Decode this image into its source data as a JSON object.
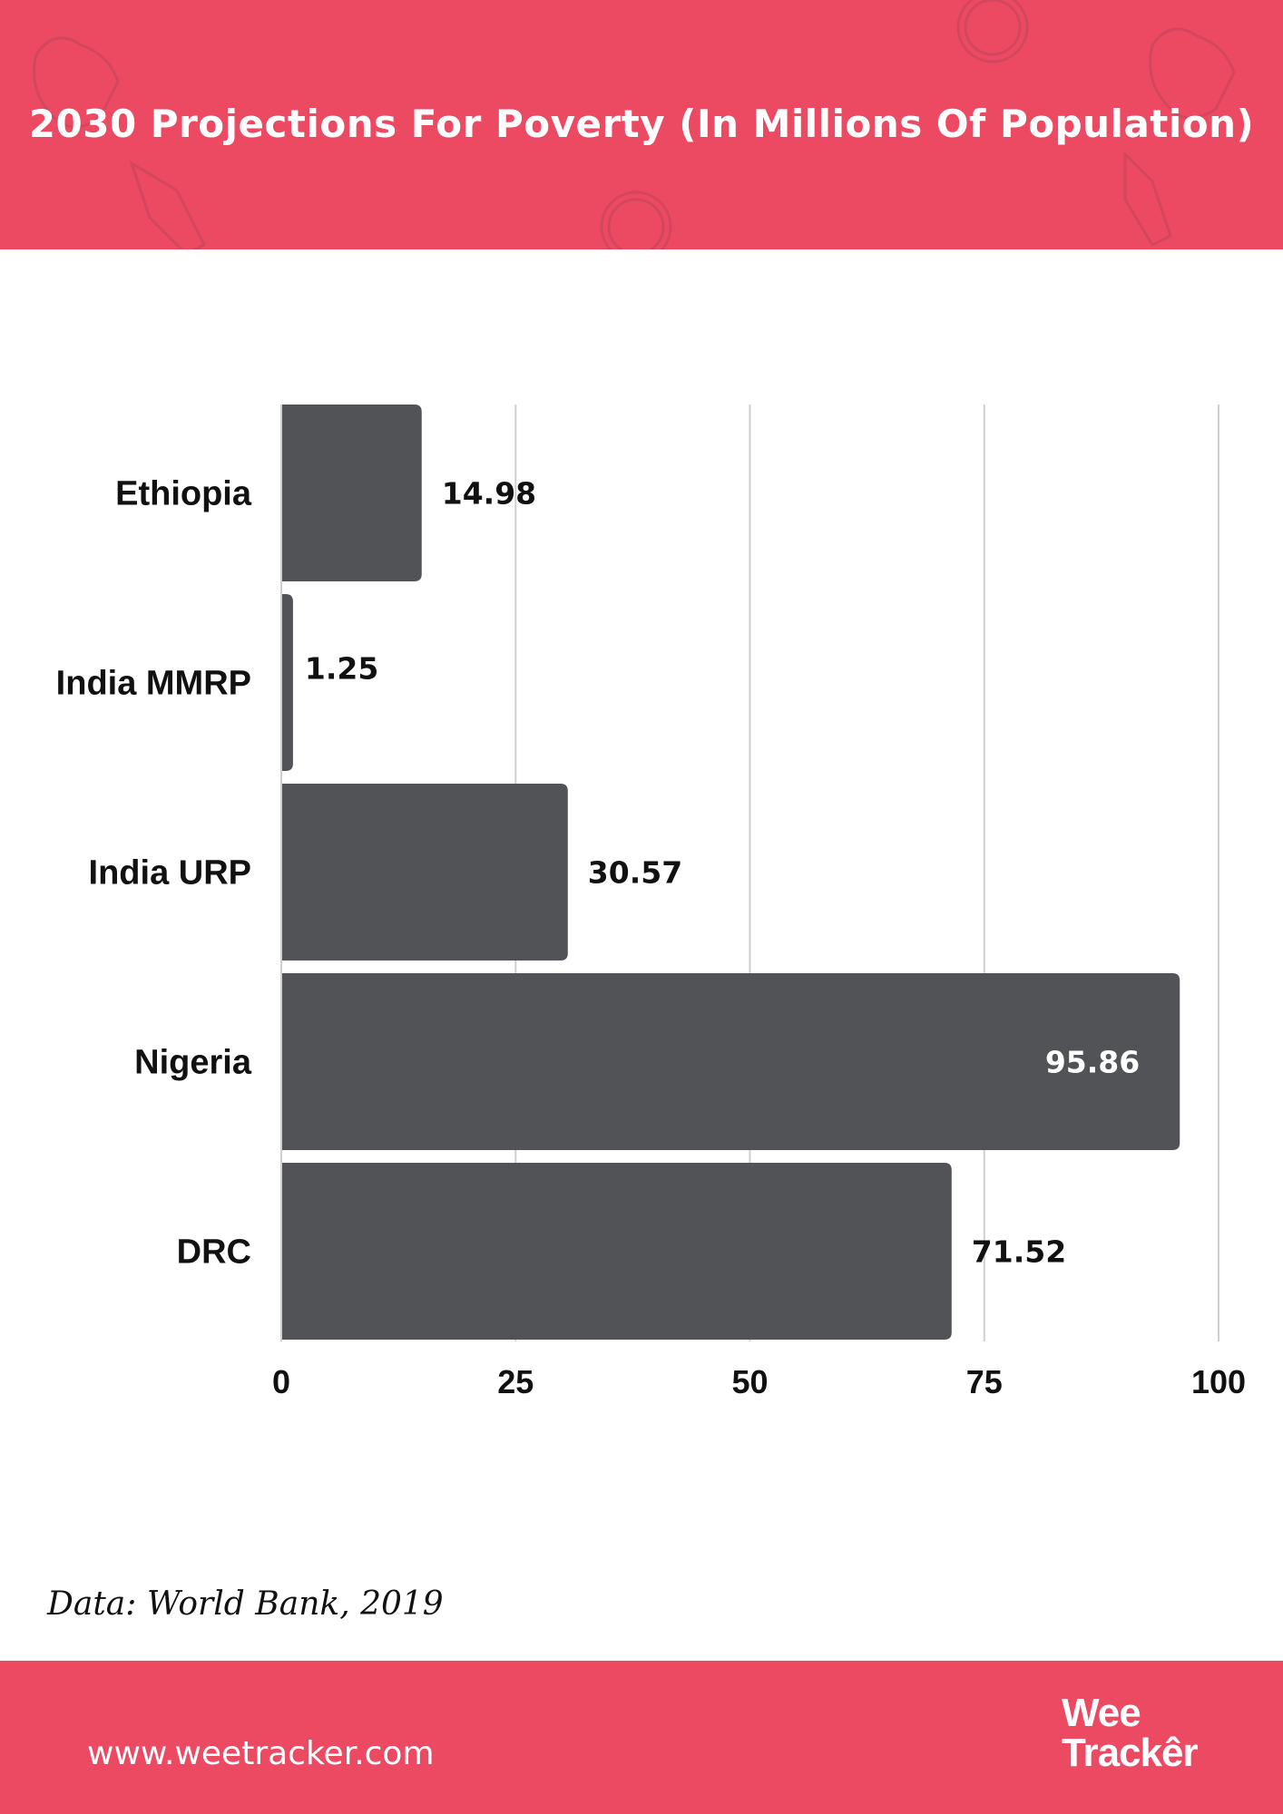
{
  "header": {
    "title": "2030 Projections For Poverty (In Millions Of Population)"
  },
  "chart_data": {
    "type": "bar",
    "orientation": "horizontal",
    "categories": [
      "Ethiopia",
      "India MMRP",
      "India URP",
      "Nigeria",
      "DRC"
    ],
    "values": [
      14.98,
      1.25,
      30.57,
      95.86,
      71.52
    ],
    "value_labels": [
      "14.98",
      "1.25",
      "30.57",
      "95.86",
      "71.52"
    ],
    "xlim": [
      0,
      100
    ],
    "xticks": [
      "0",
      "25",
      "50",
      "75",
      "100"
    ],
    "grid": true,
    "bar_color": "#525357",
    "title": "",
    "xlabel": "",
    "ylabel": ""
  },
  "source": "Data: World Bank, 2019",
  "footer": {
    "website": "www.weetracker.com",
    "logo_line1": "Wee",
    "logo_line2": "Trackêr"
  },
  "colors": {
    "brand": "#ec4962",
    "bar": "#525357"
  }
}
